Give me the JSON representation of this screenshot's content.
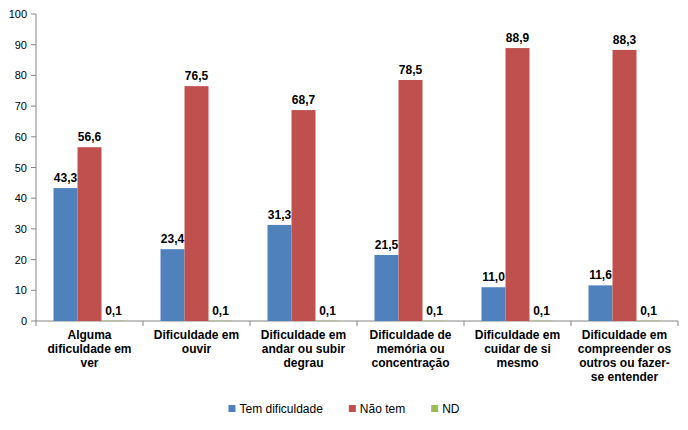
{
  "chart_data": {
    "type": "bar",
    "categories": [
      "Alguma\ndificuldade em\nver",
      "Dificuldade em\nouvir",
      "Dificuldade em\nandar ou subir\ndegrau",
      "Dificuldade de\nmemória ou\nconcentração",
      "Dificuldade em\ncuidar de si\nmesmo",
      "Dificuldade em\ncompreender os\noutros ou fazer-\nse entender"
    ],
    "series": [
      {
        "name": "Tem dificuldade",
        "color": "#4f81bd",
        "values": [
          43.3,
          23.4,
          31.3,
          21.5,
          11.0,
          11.6
        ],
        "value_labels": [
          "43,3",
          "23,4",
          "31,3",
          "21,5",
          "11,0",
          "11,6"
        ]
      },
      {
        "name": "Não tem",
        "color": "#c0504d",
        "values": [
          56.6,
          76.5,
          68.7,
          78.5,
          88.9,
          88.3
        ],
        "value_labels": [
          "56,6",
          "76,5",
          "68,7",
          "78,5",
          "88,9",
          "88,3"
        ]
      },
      {
        "name": "ND",
        "color": "#9bbb59",
        "values": [
          0.1,
          0.1,
          0.1,
          0.1,
          0.1,
          0.1
        ],
        "value_labels": [
          "0,1",
          "0,1",
          "0,1",
          "0,1",
          "0,1",
          "0,1"
        ]
      }
    ],
    "ylim": [
      0,
      100
    ],
    "yticks": [
      0,
      10,
      20,
      30,
      40,
      50,
      60,
      70,
      80,
      90,
      100
    ],
    "grid": false,
    "data_labels": true,
    "legend": "bottom"
  }
}
